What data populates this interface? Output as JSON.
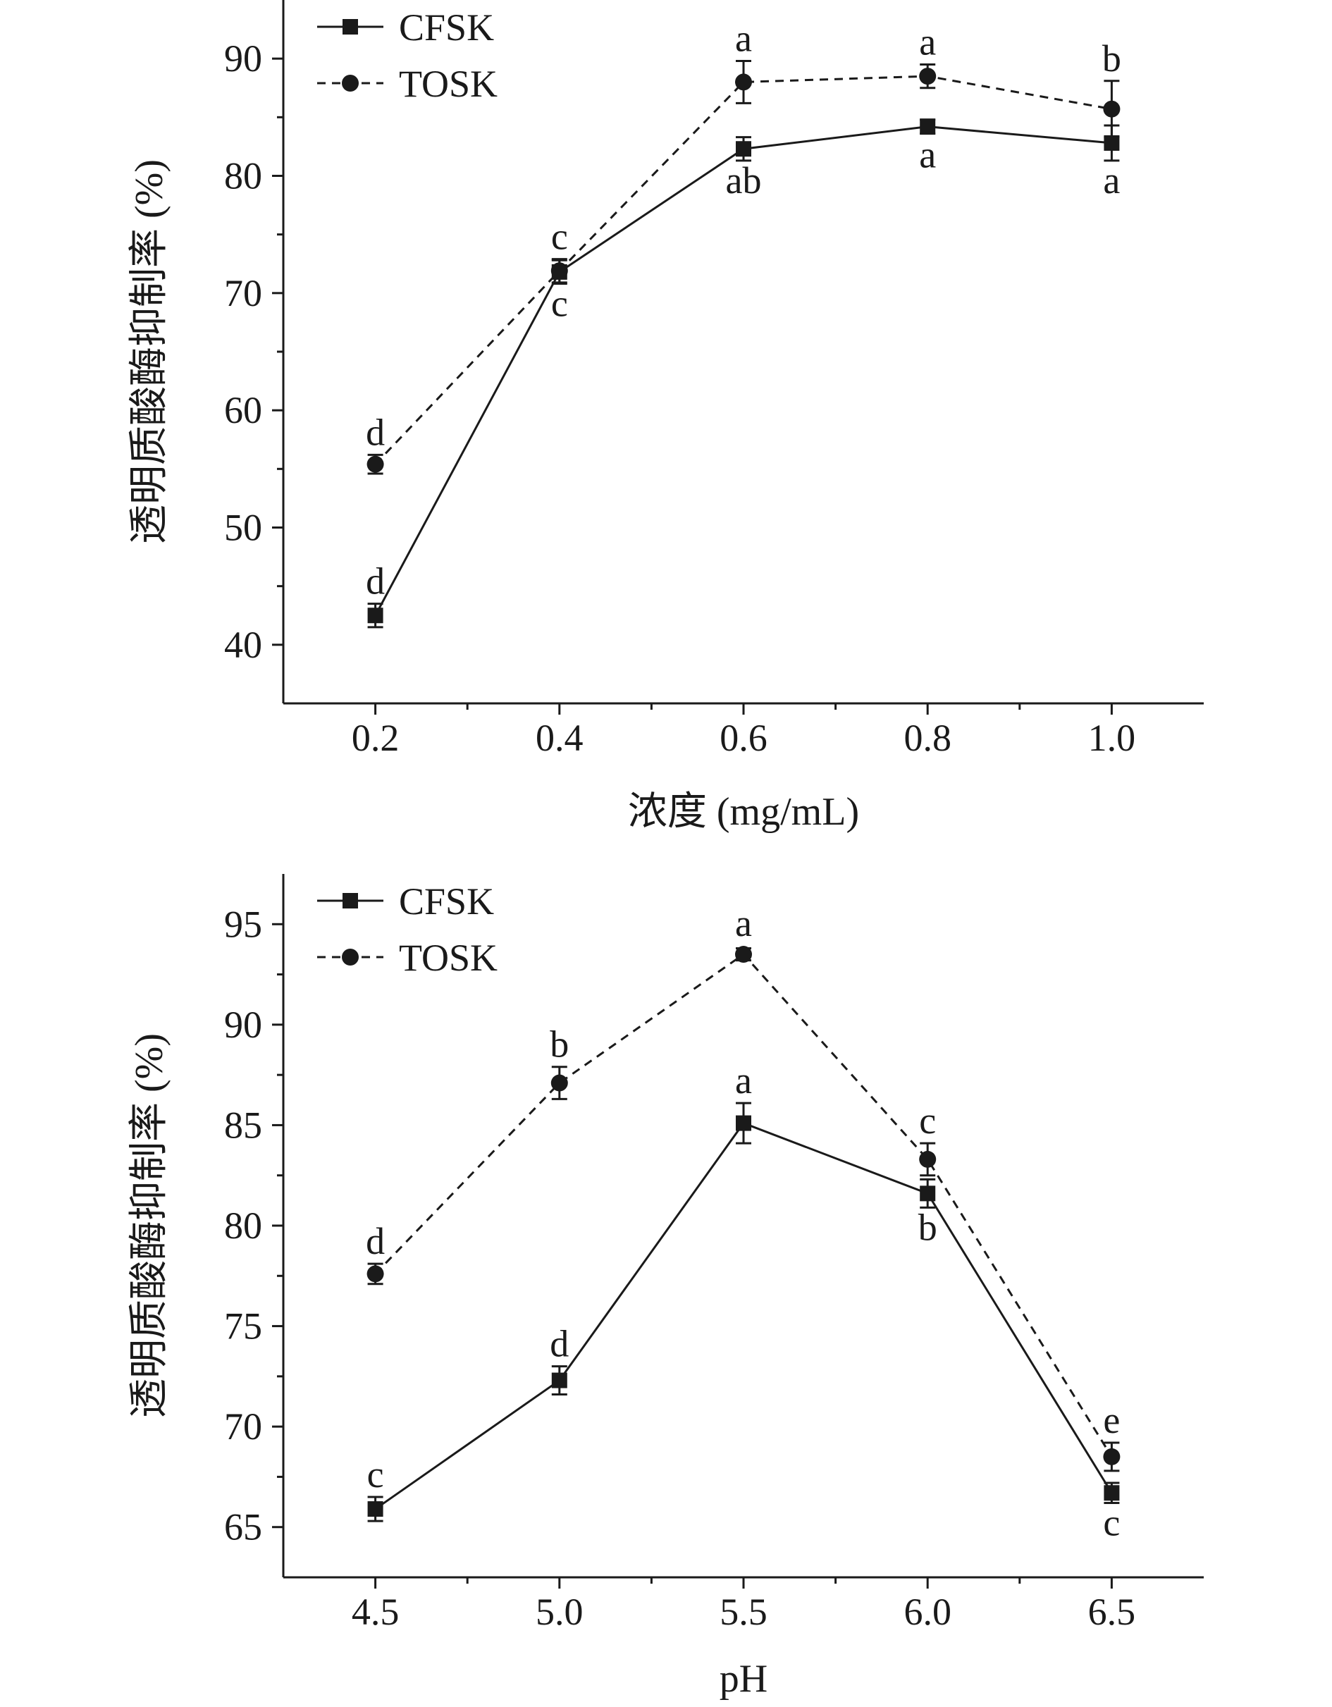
{
  "chart_data": [
    {
      "type": "line",
      "title": "",
      "xlabel": "浓度 (mg/mL)",
      "ylabel": "透明质酸酶抑制率 (%)",
      "x": [
        0.2,
        0.4,
        0.6,
        0.8,
        1.0
      ],
      "x_tick_labels": [
        "0.2",
        "0.4",
        "0.6",
        "0.8",
        "1.0"
      ],
      "xlim": [
        0.1,
        1.1
      ],
      "y_ticks": [
        40,
        50,
        60,
        70,
        80,
        90
      ],
      "y_tick_labels": [
        "40",
        "50",
        "60",
        "70",
        "80",
        "90"
      ],
      "ylim": [
        35,
        95
      ],
      "legend_position": "top-left",
      "series": [
        {
          "name": "CFSK",
          "marker": "square",
          "line_style": "solid",
          "values": [
            42.5,
            71.8,
            82.3,
            84.2,
            82.8
          ],
          "errors": [
            1.0,
            1.0,
            1.0,
            0.6,
            1.5
          ],
          "labels": [
            "d",
            "c",
            "ab",
            "a",
            "a"
          ],
          "label_side": [
            "above",
            "below",
            "below",
            "below",
            "below"
          ]
        },
        {
          "name": "TOSK",
          "marker": "circle",
          "line_style": "dashed",
          "values": [
            55.4,
            71.9,
            88.0,
            88.5,
            85.7
          ],
          "errors": [
            0.8,
            1.0,
            1.8,
            1.0,
            2.4
          ],
          "labels": [
            "d",
            "c",
            "a",
            "a",
            "b"
          ],
          "label_side": [
            "above",
            "above",
            "above",
            "above",
            "above"
          ]
        }
      ]
    },
    {
      "type": "line",
      "title": "",
      "xlabel": "pH",
      "ylabel": "透明质酸酶抑制率 (%)",
      "x": [
        4.5,
        5.0,
        5.5,
        6.0,
        6.5
      ],
      "x_tick_labels": [
        "4.5",
        "5.0",
        "5.5",
        "6.0",
        "6.5"
      ],
      "xlim": [
        4.25,
        6.75
      ],
      "y_ticks": [
        65,
        70,
        75,
        80,
        85,
        90,
        95
      ],
      "y_tick_labels": [
        "65",
        "70",
        "75",
        "80",
        "85",
        "90",
        "95"
      ],
      "ylim": [
        62.5,
        97.5
      ],
      "legend_position": "top-left",
      "series": [
        {
          "name": "CFSK",
          "marker": "square",
          "line_style": "solid",
          "values": [
            65.9,
            72.3,
            85.1,
            81.6,
            66.7
          ],
          "errors": [
            0.6,
            0.7,
            1.0,
            0.7,
            0.5
          ],
          "labels": [
            "c",
            "d",
            "a",
            "b",
            "c"
          ],
          "label_side": [
            "above",
            "above",
            "above",
            "below",
            "below"
          ]
        },
        {
          "name": "TOSK",
          "marker": "circle",
          "line_style": "dashed",
          "values": [
            77.6,
            87.1,
            93.5,
            83.3,
            68.5
          ],
          "errors": [
            0.5,
            0.8,
            0.3,
            0.8,
            0.7
          ],
          "labels": [
            "d",
            "b",
            "a",
            "c",
            "e"
          ],
          "label_side": [
            "above",
            "above",
            "above",
            "above",
            "above"
          ]
        }
      ]
    }
  ]
}
